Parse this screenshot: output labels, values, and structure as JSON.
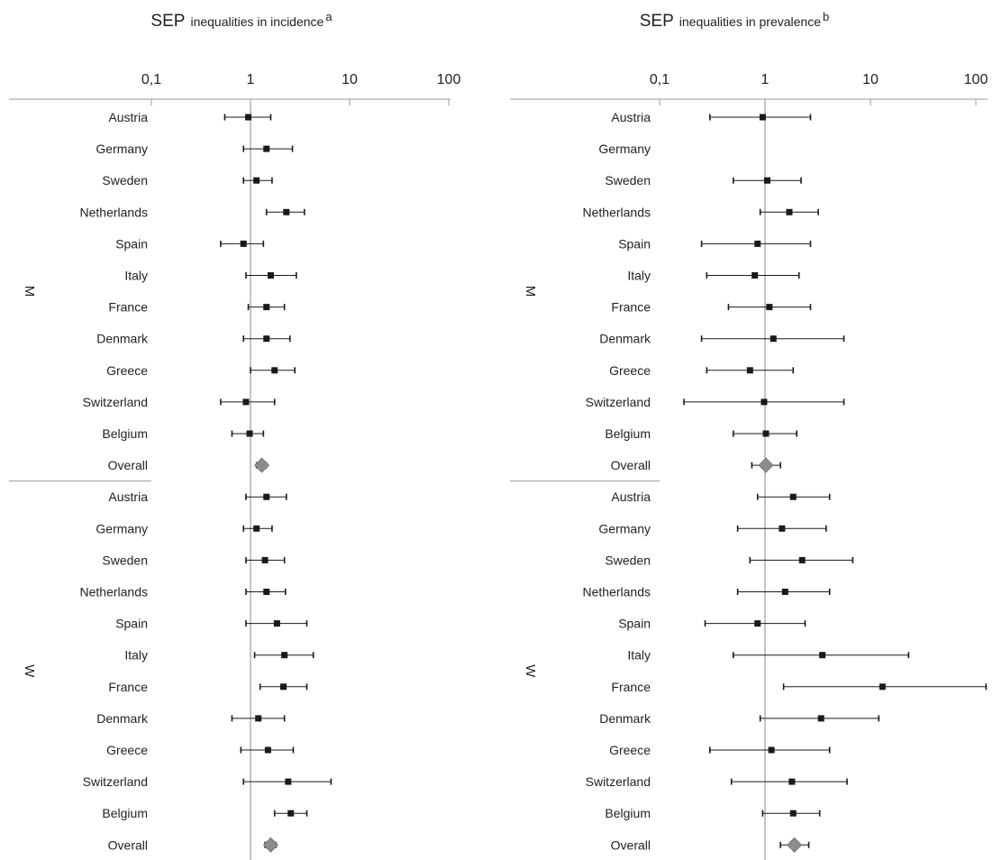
{
  "chart_data": [
    {
      "type": "forest",
      "title_main": "SEP",
      "title_rest": "inequalities in incidence",
      "title_superscript": "a",
      "x_scale": "log",
      "xlim": [
        0.1,
        100
      ],
      "x_ticks": [
        0.1,
        1,
        10,
        100
      ],
      "x_tick_labels": [
        "0,1",
        "1",
        "10",
        "100"
      ],
      "reference_line": 1,
      "groups": [
        {
          "label": "M",
          "rows": [
            {
              "label": "Austria",
              "estimate": 0.95,
              "lower": 0.55,
              "upper": 1.6
            },
            {
              "label": "Germany",
              "estimate": 1.45,
              "lower": 0.85,
              "upper": 2.65
            },
            {
              "label": "Sweden",
              "estimate": 1.15,
              "lower": 0.85,
              "upper": 1.65
            },
            {
              "label": "Netherlands",
              "estimate": 2.3,
              "lower": 1.45,
              "upper": 3.5
            },
            {
              "label": "Spain",
              "estimate": 0.85,
              "lower": 0.5,
              "upper": 1.35
            },
            {
              "label": "Italy",
              "estimate": 1.6,
              "lower": 0.9,
              "upper": 2.9
            },
            {
              "label": "France",
              "estimate": 1.45,
              "lower": 0.95,
              "upper": 2.2
            },
            {
              "label": "Denmark",
              "estimate": 1.45,
              "lower": 0.85,
              "upper": 2.5
            },
            {
              "label": "Greece",
              "estimate": 1.75,
              "lower": 1.0,
              "upper": 2.8
            },
            {
              "label": "Switzerland",
              "estimate": 0.9,
              "lower": 0.5,
              "upper": 1.75
            },
            {
              "label": "Belgium",
              "estimate": 0.98,
              "lower": 0.65,
              "upper": 1.35
            }
          ],
          "overall": {
            "label": "Overall",
            "estimate": 1.3,
            "lower": 1.15,
            "upper": 1.45
          }
        },
        {
          "label": "W",
          "rows": [
            {
              "label": "Austria",
              "estimate": 1.45,
              "lower": 0.9,
              "upper": 2.3
            },
            {
              "label": "Germany",
              "estimate": 1.15,
              "lower": 0.85,
              "upper": 1.65
            },
            {
              "label": "Sweden",
              "estimate": 1.4,
              "lower": 0.9,
              "upper": 2.2
            },
            {
              "label": "Netherlands",
              "estimate": 1.45,
              "lower": 0.9,
              "upper": 2.25
            },
            {
              "label": "Spain",
              "estimate": 1.85,
              "lower": 0.9,
              "upper": 3.7
            },
            {
              "label": "Italy",
              "estimate": 2.2,
              "lower": 1.1,
              "upper": 4.3
            },
            {
              "label": "France",
              "estimate": 2.15,
              "lower": 1.25,
              "upper": 3.7
            },
            {
              "label": "Denmark",
              "estimate": 1.2,
              "lower": 0.65,
              "upper": 2.2
            },
            {
              "label": "Greece",
              "estimate": 1.5,
              "lower": 0.8,
              "upper": 2.7
            },
            {
              "label": "Switzerland",
              "estimate": 2.4,
              "lower": 0.85,
              "upper": 6.5
            },
            {
              "label": "Belgium",
              "estimate": 2.55,
              "lower": 1.75,
              "upper": 3.7
            }
          ],
          "overall": {
            "label": "Overall",
            "estimate": 1.6,
            "lower": 1.4,
            "upper": 1.8
          }
        }
      ]
    },
    {
      "type": "forest",
      "title_main": "SEP",
      "title_rest": "inequalities in prevalence",
      "title_superscript": "b",
      "x_scale": "log",
      "xlim": [
        0.1,
        100
      ],
      "x_ticks": [
        0.1,
        1,
        10,
        100
      ],
      "x_tick_labels": [
        "0,1",
        "1",
        "10",
        "100"
      ],
      "reference_line": 1,
      "groups": [
        {
          "label": "M",
          "rows": [
            {
              "label": "Austria",
              "estimate": 0.95,
              "lower": 0.3,
              "upper": 2.7
            },
            {
              "label": "Germany",
              "estimate": null,
              "lower": null,
              "upper": null
            },
            {
              "label": "Sweden",
              "estimate": 1.05,
              "lower": 0.5,
              "upper": 2.2
            },
            {
              "label": "Netherlands",
              "estimate": 1.7,
              "lower": 0.9,
              "upper": 3.2
            },
            {
              "label": "Spain",
              "estimate": 0.85,
              "lower": 0.25,
              "upper": 2.7
            },
            {
              "label": "Italy",
              "estimate": 0.8,
              "lower": 0.28,
              "upper": 2.1
            },
            {
              "label": "France",
              "estimate": 1.1,
              "lower": 0.45,
              "upper": 2.7
            },
            {
              "label": "Denmark",
              "estimate": 1.2,
              "lower": 0.25,
              "upper": 5.6
            },
            {
              "label": "Greece",
              "estimate": 0.72,
              "lower": 0.28,
              "upper": 1.85
            },
            {
              "label": "Switzerland",
              "estimate": 0.98,
              "lower": 0.17,
              "upper": 5.6
            },
            {
              "label": "Belgium",
              "estimate": 1.02,
              "lower": 0.5,
              "upper": 2.0
            }
          ],
          "overall": {
            "label": "Overall",
            "estimate": 1.02,
            "lower": 0.75,
            "upper": 1.4
          }
        },
        {
          "label": "W",
          "rows": [
            {
              "label": "Austria",
              "estimate": 1.85,
              "lower": 0.85,
              "upper": 4.1
            },
            {
              "label": "Germany",
              "estimate": 1.45,
              "lower": 0.55,
              "upper": 3.8
            },
            {
              "label": "Sweden",
              "estimate": 2.25,
              "lower": 0.72,
              "upper": 6.8
            },
            {
              "label": "Netherlands",
              "estimate": 1.55,
              "lower": 0.55,
              "upper": 4.1
            },
            {
              "label": "Spain",
              "estimate": 0.85,
              "lower": 0.27,
              "upper": 2.4
            },
            {
              "label": "Italy",
              "estimate": 3.5,
              "lower": 0.5,
              "upper": 23
            },
            {
              "label": "France",
              "estimate": 13,
              "lower": 1.5,
              "upper": 125
            },
            {
              "label": "Denmark",
              "estimate": 3.4,
              "lower": 0.9,
              "upper": 12
            },
            {
              "label": "Greece",
              "estimate": 1.15,
              "lower": 0.3,
              "upper": 4.1
            },
            {
              "label": "Switzerland",
              "estimate": 1.8,
              "lower": 0.48,
              "upper": 6.0
            },
            {
              "label": "Belgium",
              "estimate": 1.85,
              "lower": 0.95,
              "upper": 3.3
            }
          ],
          "overall": {
            "label": "Overall",
            "estimate": 1.9,
            "lower": 1.4,
            "upper": 2.6
          }
        }
      ]
    }
  ]
}
